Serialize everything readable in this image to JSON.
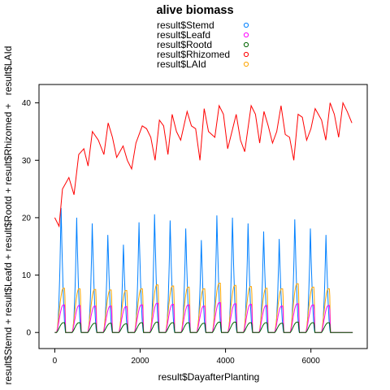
{
  "chart_data": {
    "type": "line",
    "title": "alive biomass",
    "xlabel": "result$DayafterPlanting",
    "ylabel": "result$Stemd + result$Leafd + result$Rootd + result$Rhizomed +   result$LAId",
    "xlim": [
      -370,
      7320
    ],
    "ylim": [
      -2.8,
      43.2
    ],
    "x_ticks": [
      0,
      2000,
      4000,
      6000
    ],
    "y_ticks": [
      0,
      10,
      20,
      30,
      40
    ],
    "grid": false,
    "legend_position": "top",
    "cycle": {
      "count": 18,
      "start_day": 40,
      "period_days": 365,
      "active_days": 215
    },
    "series": [
      {
        "name": "result$Stemd",
        "color": "#0080ff",
        "peaks": [
          21.7,
          20.0,
          19.0,
          17.0,
          15.3,
          19.2,
          20.6,
          19.5,
          18.1,
          16.1,
          20.4,
          20.0,
          19.0,
          17.6,
          16.3,
          19.7,
          18.1,
          17.0
        ]
      },
      {
        "name": "result$Leafd",
        "color": "#ff00ff",
        "peaks": [
          4.8,
          4.7,
          4.6,
          4.6,
          4.5,
          4.8,
          5.1,
          4.9,
          4.8,
          4.6,
          5.2,
          5.0,
          4.9,
          4.7,
          4.6,
          5.0,
          4.8,
          4.7
        ]
      },
      {
        "name": "result$Rootd",
        "color": "#006400",
        "peaks": [
          1.7,
          1.7,
          1.6,
          1.6,
          1.5,
          1.7,
          1.8,
          1.7,
          1.7,
          1.6,
          1.8,
          1.8,
          1.7,
          1.7,
          1.6,
          1.8,
          1.7,
          1.7
        ]
      },
      {
        "name": "result$Rhizomed",
        "color": "#ff0000",
        "x": [
          0,
          100,
          180,
          330,
          450,
          560,
          680,
          780,
          880,
          1020,
          1150,
          1250,
          1350,
          1450,
          1600,
          1700,
          1800,
          1900,
          2050,
          2150,
          2250,
          2350,
          2450,
          2550,
          2650,
          2750,
          2850,
          2950,
          3100,
          3200,
          3300,
          3400,
          3500,
          3600,
          3750,
          3850,
          3950,
          4050,
          4150,
          4250,
          4350,
          4450,
          4600,
          4700,
          4800,
          4900,
          5000,
          5100,
          5200,
          5300,
          5400,
          5500,
          5600,
          5700,
          5800,
          5900,
          6000,
          6100,
          6250,
          6350,
          6450,
          6550,
          6650,
          6750,
          6850,
          6960
        ],
        "values": [
          20.0,
          18.5,
          25.0,
          27.0,
          24.0,
          31.0,
          32.0,
          29.0,
          35.0,
          33.5,
          31.0,
          36.5,
          34.0,
          30.5,
          32.5,
          30.0,
          28.5,
          33.0,
          36.0,
          35.5,
          34.0,
          30.0,
          37.0,
          36.0,
          31.0,
          38.0,
          35.0,
          33.5,
          38.5,
          36.0,
          35.5,
          30.0,
          39.0,
          35.0,
          34.0,
          39.5,
          38.0,
          32.0,
          35.0,
          38.0,
          33.5,
          31.5,
          39.5,
          38.0,
          33.0,
          38.5,
          36.0,
          33.0,
          35.0,
          39.5,
          34.5,
          34.0,
          30.0,
          38.0,
          37.5,
          33.5,
          35.5,
          39.0,
          37.0,
          33.5,
          40.0,
          38.0,
          34.0,
          40.0,
          38.5,
          36.5
        ]
      },
      {
        "name": "result$LAId",
        "color": "#ffa500",
        "peaks": [
          7.7,
          7.6,
          7.5,
          7.4,
          7.3,
          7.6,
          8.3,
          8.1,
          7.9,
          7.6,
          8.6,
          8.2,
          8.0,
          7.7,
          7.6,
          8.5,
          7.9,
          7.6
        ]
      }
    ]
  }
}
